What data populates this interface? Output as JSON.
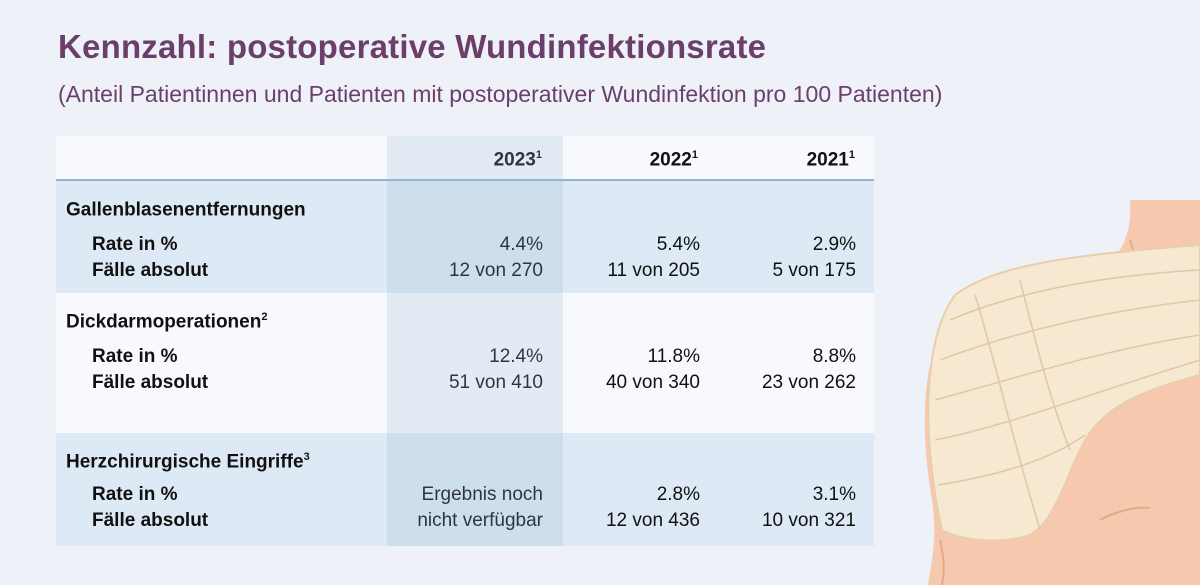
{
  "title": "Kennzahl: postoperative Wundinfektionsrate",
  "subtitle": "(Anteil Patientinnen und Patienten mit postoperativer Wundinfektion pro 100 Patienten)",
  "columns": [
    {
      "year": "2023",
      "note": "1"
    },
    {
      "year": "2022",
      "note": "1"
    },
    {
      "year": "2021",
      "note": "1"
    }
  ],
  "row_labels": {
    "rate": "Rate in %",
    "cases": "Fälle absolut"
  },
  "sections": [
    {
      "title": "Gallenblasenentfernungen",
      "note": "",
      "rate": [
        "4.4%",
        "5.4%",
        "2.9%"
      ],
      "cases": [
        "12 von 270",
        "11 von 205",
        "5 von 175"
      ]
    },
    {
      "title": "Dickdarmoperationen",
      "note": "2",
      "rate": [
        "12.4%",
        "11.8%",
        "8.8%"
      ],
      "cases": [
        "51 von 410",
        "40 von 340",
        "23 von 262"
      ]
    },
    {
      "title": "Herzchirurgische Eingriffe",
      "note": "3",
      "rate": [
        "Ergebnis noch",
        "2.8%",
        "3.1%"
      ],
      "cases": [
        "nicht verfügbar",
        "12 von 436",
        "10 von 321"
      ]
    }
  ],
  "colors": {
    "title": "#6b3f6a",
    "band": "#dde9f4",
    "skin": "#f6c9ae",
    "bandage": "#f7e8d2"
  }
}
